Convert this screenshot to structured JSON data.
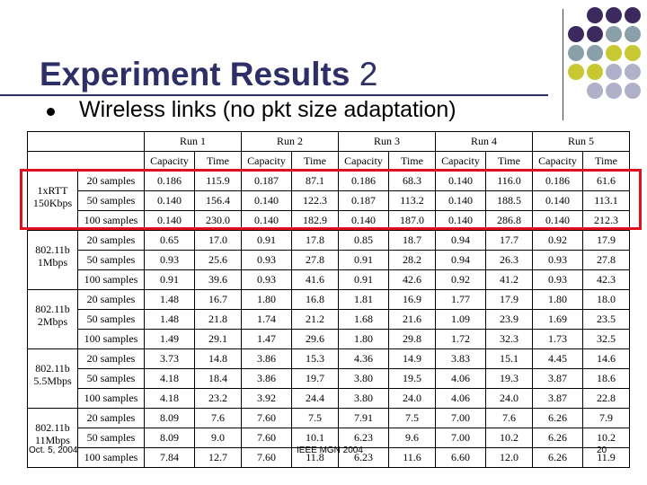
{
  "slide": {
    "title": "Experiment Results",
    "title_number": "2",
    "bullet": "Wireless links (no pkt size adaptation)",
    "footer_date": "Oct. 5, 2004",
    "footer_center": "IEEE MGN 2004",
    "page_number": "20",
    "highlight_color": "#e0101e",
    "title_color": "#2e2f66",
    "decor_colors": [
      "#3c2a5e",
      "#8aa0a8",
      "#c8c832",
      "#b0b0c8"
    ]
  },
  "table": {
    "runs": [
      "Run 1",
      "Run 2",
      "Run 3",
      "Run 4",
      "Run 5"
    ],
    "col_headers": [
      "Capacity",
      "Time"
    ],
    "groups": [
      {
        "label": "1xRTT 150Kbps",
        "rows": [
          {
            "samples": "20 samples",
            "values": [
              "0.186",
              "115.9",
              "0.187",
              "87.1",
              "0.186",
              "68.3",
              "0.140",
              "116.0",
              "0.186",
              "61.6"
            ]
          },
          {
            "samples": "50 samples",
            "values": [
              "0.140",
              "156.4",
              "0.140",
              "122.3",
              "0.187",
              "113.2",
              "0.140",
              "188.5",
              "0.140",
              "113.1"
            ]
          },
          {
            "samples": "100 samples",
            "values": [
              "0.140",
              "230.0",
              "0.140",
              "182.9",
              "0.140",
              "187.0",
              "0.140",
              "286.8",
              "0.140",
              "212.3"
            ]
          }
        ]
      },
      {
        "label": "802.11b 1Mbps",
        "rows": [
          {
            "samples": "20 samples",
            "values": [
              "0.65",
              "17.0",
              "0.91",
              "17.8",
              "0.85",
              "18.7",
              "0.94",
              "17.7",
              "0.92",
              "17.9"
            ]
          },
          {
            "samples": "50 samples",
            "values": [
              "0.93",
              "25.6",
              "0.93",
              "27.8",
              "0.91",
              "28.2",
              "0.94",
              "26.3",
              "0.93",
              "27.8"
            ]
          },
          {
            "samples": "100 samples",
            "values": [
              "0.91",
              "39.6",
              "0.93",
              "41.6",
              "0.91",
              "42.6",
              "0.92",
              "41.2",
              "0.93",
              "42.3"
            ]
          }
        ]
      },
      {
        "label": "802.11b 2Mbps",
        "rows": [
          {
            "samples": "20 samples",
            "values": [
              "1.48",
              "16.7",
              "1.80",
              "16.8",
              "1.81",
              "16.9",
              "1.77",
              "17.9",
              "1.80",
              "18.0"
            ]
          },
          {
            "samples": "50 samples",
            "values": [
              "1.48",
              "21.8",
              "1.74",
              "21.2",
              "1.68",
              "21.6",
              "1.09",
              "23.9",
              "1.69",
              "23.5"
            ]
          },
          {
            "samples": "100 samples",
            "values": [
              "1.49",
              "29.1",
              "1.47",
              "29.6",
              "1.80",
              "29.8",
              "1.72",
              "32.3",
              "1.73",
              "32.5"
            ]
          }
        ]
      },
      {
        "label": "802.11b 5.5Mbps",
        "rows": [
          {
            "samples": "20 samples",
            "values": [
              "3.73",
              "14.8",
              "3.86",
              "15.3",
              "4.36",
              "14.9",
              "3.83",
              "15.1",
              "4.45",
              "14.6"
            ]
          },
          {
            "samples": "50 samples",
            "values": [
              "4.18",
              "18.4",
              "3.86",
              "19.7",
              "3.80",
              "19.5",
              "4.06",
              "19.3",
              "3.87",
              "18.6"
            ]
          },
          {
            "samples": "100 samples",
            "values": [
              "4.18",
              "23.2",
              "3.92",
              "24.4",
              "3.80",
              "24.0",
              "4.06",
              "24.0",
              "3.87",
              "22.8"
            ]
          }
        ]
      },
      {
        "label": "802.11b 11Mbps",
        "rows": [
          {
            "samples": "20 samples",
            "values": [
              "8.09",
              "7.6",
              "7.60",
              "7.5",
              "7.91",
              "7.5",
              "7.00",
              "7.6",
              "6.26",
              "7.9"
            ]
          },
          {
            "samples": "50 samples",
            "values": [
              "8.09",
              "9.0",
              "7.60",
              "10.1",
              "6.23",
              "9.6",
              "7.00",
              "10.2",
              "6.26",
              "10.2"
            ]
          },
          {
            "samples": "100 samples",
            "values": [
              "7.84",
              "12.7",
              "7.60",
              "11.8",
              "6.23",
              "11.6",
              "6.60",
              "12.0",
              "6.26",
              "11.9"
            ]
          }
        ]
      }
    ]
  }
}
